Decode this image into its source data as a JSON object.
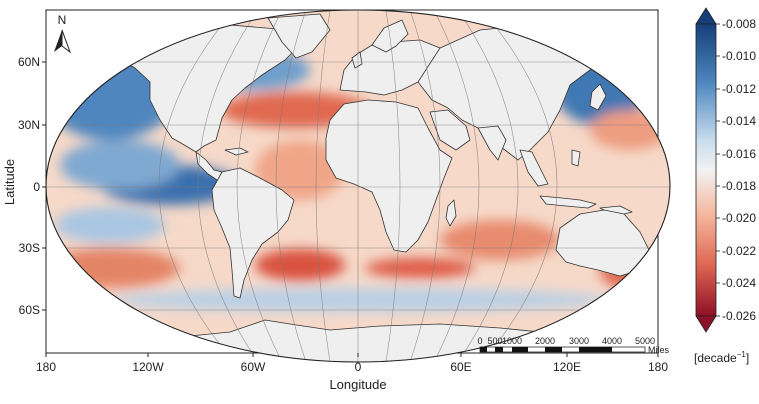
{
  "map": {
    "x_label": "Longitude",
    "y_label": "Latitude",
    "north_label": "N",
    "x_ticks": [
      "180",
      "120W",
      "60W",
      "0",
      "60E",
      "120E",
      "180"
    ],
    "y_ticks": [
      "60N",
      "30N",
      "0",
      "30S",
      "60S"
    ]
  },
  "scale_bar": {
    "labels": [
      "0",
      "500",
      "1000",
      "2000",
      "3000",
      "4000",
      "5000"
    ],
    "unit": "Miles"
  },
  "colorbar": {
    "ticks": [
      "-0.008",
      "-0.010",
      "-0.012",
      "-0.014",
      "-0.016",
      "-0.018",
      "-0.020",
      "-0.022",
      "-0.024",
      "-0.026"
    ],
    "unit_base": "[decade",
    "unit_exp": "−1",
    "unit_close": "]",
    "colors": {
      "high": "#1f4e8c",
      "mid_high": "#8fb7d8",
      "neutral": "#f2f2f2",
      "mid_low": "#f2a582",
      "low": "#a6192e"
    }
  },
  "colors": {
    "land": "#efefef",
    "ocean_base": "#f7ddd0",
    "coast": "#333333"
  }
}
